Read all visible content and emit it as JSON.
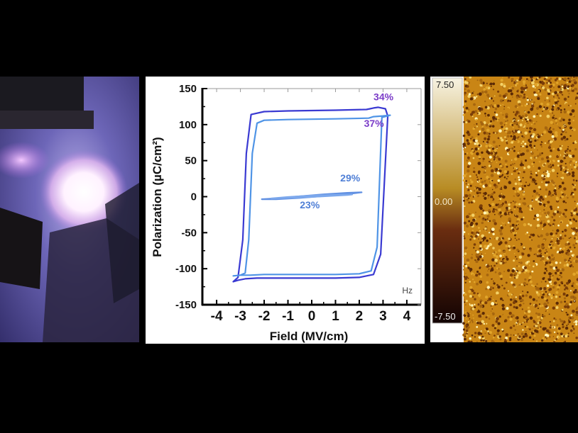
{
  "chart_data": [
    {
      "type": "line",
      "title": "",
      "xlabel": "Field (MV/cm)",
      "ylabel": "Polarization (µC/cm²)",
      "xlim": [
        -4.6,
        4.6
      ],
      "ylim": [
        -150,
        150
      ],
      "xticks": [
        -4,
        -3,
        -2,
        -1,
        0,
        1,
        2,
        3,
        4
      ],
      "xtick_labels": [
        "-4",
        "-3",
        "-2",
        "-1",
        "0",
        "1",
        "2",
        "3",
        "4"
      ],
      "yticks": [
        150,
        100,
        50,
        0,
        -50,
        -100,
        -150
      ],
      "ytick_labels": [
        "150",
        "100",
        "50",
        "0",
        "-50",
        "-100",
        "-150"
      ],
      "grid": false,
      "series": [
        {
          "label": "34%",
          "color": "#3a3ad2",
          "x": [
            -3.3,
            -3.1,
            -2.8,
            -2.3,
            -1.0,
            1.0,
            2.0,
            2.6,
            2.9,
            3.2,
            3.1,
            2.8,
            2.6,
            2.45,
            2.3,
            1.0,
            -1.0,
            -2.0,
            -2.55,
            -2.75,
            -2.9,
            -3.1,
            -3.3
          ],
          "y": [
            -118,
            -116,
            -114,
            -113,
            -113,
            -113,
            -112,
            -108,
            -80,
            112,
            122,
            124,
            123,
            122,
            121,
            120,
            119,
            118,
            114,
            60,
            -60,
            -112,
            -118
          ]
        },
        {
          "label": "37%",
          "color": "#4f94e6",
          "x": [
            -3.3,
            -3.0,
            -2.6,
            -2.0,
            -1.0,
            1.0,
            2.0,
            2.5,
            2.75,
            2.95,
            3.3,
            3.0,
            2.6,
            2.4,
            1.0,
            -1.0,
            -2.0,
            -2.3,
            -2.5,
            -2.65,
            -2.8,
            -3.0,
            -3.3
          ],
          "y": [
            -110,
            -109,
            -109,
            -108,
            -108,
            -108,
            -107,
            -103,
            -70,
            110,
            113,
            112,
            111,
            109,
            108,
            107,
            106,
            102,
            60,
            -60,
            -106,
            -109,
            -110
          ]
        },
        {
          "label": "29%",
          "color": "#5f8fe2",
          "x": [
            -1.5,
            -0.5,
            0.5,
            1.5,
            2.1,
            1.5,
            0.5,
            -0.5,
            -1.5,
            -2.1,
            -1.5
          ],
          "y": [
            -3.5,
            -1.8,
            0.8,
            3.5,
            6,
            5.3,
            3.2,
            0.5,
            -2.5,
            -3.5,
            -3.5
          ]
        },
        {
          "label": "23%",
          "color": "#7ca8ec",
          "x": [
            -1.5,
            -0.5,
            0.5,
            1.5,
            1.7,
            1.0,
            0.0,
            -1.0,
            -1.7,
            -1.5
          ],
          "y": [
            -2.3,
            -1.2,
            0.5,
            2.3,
            3,
            2.6,
            1.5,
            -0.5,
            -2.5,
            -2.3
          ]
        }
      ],
      "annotations": [
        {
          "text": "34%",
          "x": 2.6,
          "y": 134,
          "color": "#7b3cc8"
        },
        {
          "text": "37%",
          "x": 2.2,
          "y": 97,
          "color": "#7b3cc8"
        },
        {
          "text": "29%",
          "x": 1.2,
          "y": 21,
          "color": "#4f7fd6"
        },
        {
          "text": "23%",
          "x": -0.5,
          "y": -16,
          "color": "#4f7fd6"
        }
      ],
      "corner_text": "Hz"
    },
    {
      "type": "heatmap",
      "title": "",
      "colorbar": {
        "ticks": [
          "7.50",
          "0.00",
          "-7.50"
        ],
        "colors": [
          "#f7f3e2",
          "#b88c24",
          "#6a2d10",
          "#120303"
        ]
      },
      "colors": {
        "low": "#5b2a06",
        "mid": "#c98515",
        "high": "#fff6b8"
      }
    }
  ],
  "photo": {
    "colors": {
      "background": "#4a4590",
      "glow": "#fff4ff",
      "mount": "#1a1718"
    }
  }
}
